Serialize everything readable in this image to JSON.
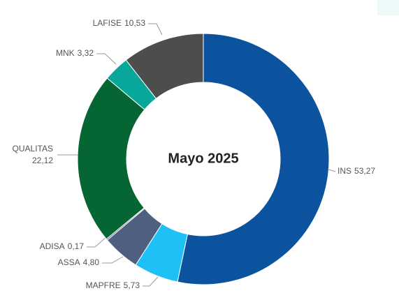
{
  "chart_data": {
    "type": "donut",
    "title": "Mayo 2025",
    "categories": [
      "INS",
      "MAPFRE",
      "ASSA",
      "ADISA",
      "QUALITAS",
      "MNK",
      "LAFISE"
    ],
    "values": [
      53.27,
      5.73,
      4.8,
      0.17,
      22.12,
      3.32,
      10.53
    ],
    "value_labels": [
      "53,27",
      "5,73",
      "4,80",
      "0,17",
      "22,12",
      "3,32",
      "10,53"
    ],
    "colors": [
      "#0b539f",
      "#1ec0f5",
      "#4f5f80",
      "#3a4a6a",
      "#056633",
      "#07a89b",
      "#4d4d4d"
    ]
  }
}
